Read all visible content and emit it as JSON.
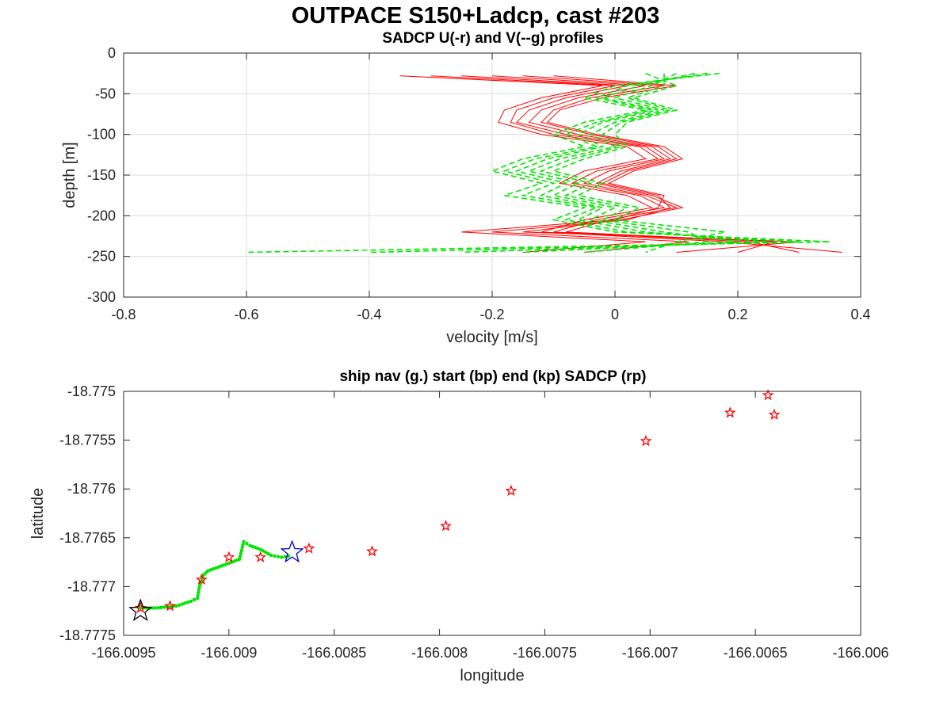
{
  "figure_title": "OUTPACE S150+Ladcp, cast #203",
  "chart_data": [
    {
      "type": "line",
      "title": "SADCP U(-r) and V(--g) profiles",
      "xlabel": "velocity [m/s]",
      "ylabel": "depth [m]",
      "xlim": [
        -0.8,
        0.4
      ],
      "ylim": [
        -300,
        0
      ],
      "xticks": [
        "-0.8",
        "-0.6",
        "-0.4",
        "-0.2",
        "0",
        "0.2",
        "0.4"
      ],
      "xtick_values": [
        -0.8,
        -0.6,
        -0.4,
        -0.2,
        0,
        0.2,
        0.4
      ],
      "yticks": [
        "0",
        "-50",
        "-100",
        "-150",
        "-200",
        "-250",
        "-300"
      ],
      "ytick_values": [
        0,
        -50,
        -100,
        -150,
        -200,
        -250,
        -300
      ],
      "grid": true,
      "series": [
        {
          "color": "#ff0000",
          "dash": "solid",
          "depths": [
            -28,
            -40,
            -55,
            -70,
            -85,
            -100,
            -115,
            -130,
            -145,
            -160,
            -175,
            -190,
            -205,
            -220,
            -232,
            -245
          ],
          "profiles": [
            [
              -0.35,
              -0.02,
              -0.12,
              -0.18,
              -0.19,
              -0.12,
              0.02,
              0.05,
              -0.05,
              -0.09,
              0.02,
              0.06,
              -0.05,
              -0.12,
              0.18,
              0.37
            ],
            [
              -0.3,
              0.0,
              -0.1,
              -0.16,
              -0.17,
              -0.1,
              0.04,
              0.07,
              -0.03,
              -0.07,
              0.04,
              0.08,
              -0.03,
              -0.1,
              0.22,
              0.3
            ],
            [
              -0.25,
              0.02,
              -0.08,
              -0.14,
              -0.16,
              -0.08,
              0.05,
              0.08,
              -0.01,
              -0.05,
              0.05,
              0.1,
              -0.01,
              -0.08,
              0.26,
              0.2
            ],
            [
              -0.2,
              0.05,
              -0.06,
              -0.12,
              -0.14,
              -0.06,
              0.06,
              0.09,
              0.01,
              -0.03,
              0.06,
              0.11,
              0.01,
              -0.15,
              0.3,
              0.1
            ],
            [
              -0.15,
              0.08,
              -0.04,
              -0.1,
              -0.12,
              -0.04,
              0.07,
              0.1,
              0.02,
              -0.02,
              0.07,
              0.09,
              0.02,
              -0.2,
              0.12,
              -0.05
            ],
            [
              -0.1,
              0.1,
              -0.02,
              -0.09,
              -0.11,
              -0.03,
              0.08,
              0.11,
              0.03,
              -0.01,
              0.08,
              0.07,
              0.0,
              -0.25,
              0.05,
              -0.15
            ]
          ]
        },
        {
          "color": "#00e600",
          "dash": "dashed",
          "depths": [
            -25,
            -40,
            -55,
            -70,
            -85,
            -100,
            -115,
            -130,
            -145,
            -160,
            -175,
            -190,
            -205,
            -220,
            -232,
            -245
          ],
          "profiles": [
            [
              0.17,
              0.0,
              -0.05,
              0.05,
              -0.05,
              -0.1,
              -0.05,
              -0.15,
              -0.2,
              -0.12,
              -0.18,
              -0.05,
              -0.1,
              0.0,
              0.35,
              -0.6
            ],
            [
              0.15,
              0.02,
              -0.03,
              0.06,
              -0.03,
              -0.08,
              -0.03,
              -0.13,
              -0.18,
              -0.1,
              -0.15,
              -0.03,
              -0.08,
              0.02,
              0.3,
              -0.4
            ],
            [
              0.13,
              0.04,
              -0.02,
              0.07,
              -0.02,
              -0.06,
              -0.02,
              -0.11,
              -0.16,
              -0.08,
              -0.12,
              -0.02,
              -0.06,
              0.05,
              0.25,
              -0.25
            ],
            [
              0.1,
              0.06,
              0.0,
              0.08,
              0.0,
              -0.04,
              0.0,
              -0.09,
              -0.14,
              -0.06,
              -0.1,
              0.0,
              -0.04,
              0.08,
              0.2,
              -0.15
            ],
            [
              0.08,
              0.08,
              0.02,
              0.09,
              0.01,
              -0.02,
              0.01,
              -0.07,
              -0.12,
              -0.04,
              -0.08,
              0.02,
              -0.02,
              0.12,
              0.15,
              -0.05
            ],
            [
              0.05,
              0.1,
              0.03,
              0.1,
              0.02,
              0.0,
              0.02,
              -0.05,
              -0.1,
              -0.02,
              -0.06,
              0.04,
              0.0,
              0.18,
              0.1,
              0.05
            ]
          ]
        }
      ]
    },
    {
      "type": "scatter",
      "title": "ship nav (g.) start (bp) end (kp) SADCP (rp)",
      "xlabel": "longitude",
      "ylabel": "latitude",
      "xlim": [
        -166.0095,
        -166.006
      ],
      "ylim": [
        -18.7775,
        -18.775
      ],
      "xticks": [
        "-166.0095",
        "-166.009",
        "-166.0085",
        "-166.008",
        "-166.0075",
        "-166.007",
        "-166.0065",
        "-166.006"
      ],
      "xtick_values": [
        -166.0095,
        -166.009,
        -166.0085,
        -166.008,
        -166.0075,
        -166.007,
        -166.0065,
        -166.006
      ],
      "yticks": [
        "-18.775",
        "-18.7755",
        "-18.776",
        "-18.7765",
        "-18.777",
        "-18.7775"
      ],
      "ytick_values": [
        -18.775,
        -18.7755,
        -18.776,
        -18.7765,
        -18.777,
        -18.7775
      ],
      "grid": false,
      "ship_nav": {
        "color": "#00e600",
        "x": [
          -166.00942,
          -166.00935,
          -166.00925,
          -166.00918,
          -166.00915,
          -166.00914,
          -166.00912,
          -166.0091,
          -166.00905,
          -166.009,
          -166.00895,
          -166.00893,
          -166.0089,
          -166.00885,
          -166.0088,
          -166.00875,
          -166.0087
        ],
        "y": [
          -18.77722,
          -18.77722,
          -18.7772,
          -18.77715,
          -18.77712,
          -18.777,
          -18.77688,
          -18.77684,
          -18.7768,
          -18.77676,
          -18.77672,
          -18.77654,
          -18.77658,
          -18.77662,
          -18.77668,
          -18.7767,
          -18.77668
        ]
      },
      "sadcp_points": {
        "color": "#ff0000",
        "x": [
          -166.00942,
          -166.00928,
          -166.00913,
          -166.009,
          -166.00885,
          -166.00862,
          -166.00832,
          -166.00797,
          -166.00766,
          -166.00702,
          -166.00662,
          -166.00644,
          -166.00641
        ],
        "y": [
          -18.77722,
          -18.7772,
          -18.77693,
          -18.7767,
          -18.7767,
          -18.77661,
          -18.77664,
          -18.77638,
          -18.77602,
          -18.77551,
          -18.77522,
          -18.77504,
          -18.77524
        ]
      },
      "start": {
        "color": "#0000cc",
        "x": -166.0087,
        "y": -18.77665
      },
      "end": {
        "color": "#000000",
        "x": -166.00942,
        "y": -18.77725
      }
    }
  ]
}
